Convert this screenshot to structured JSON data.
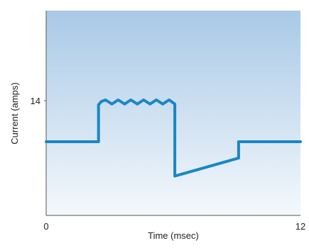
{
  "chart_data": {
    "type": "line",
    "xlabel": "Time (msec)",
    "ylabel": "Current (amps)",
    "xlim": [
      0,
      12
    ],
    "ylim": [
      0,
      25
    ],
    "x_tick_labels": [
      {
        "value": 0,
        "label": "0"
      },
      {
        "value": 12,
        "label": "12"
      }
    ],
    "y_tick_labels": [
      {
        "value": 14,
        "label": "14"
      }
    ],
    "grid": false,
    "series": [
      {
        "color": "#1a86c7",
        "x": [
          0,
          2.47,
          2.47,
          2.6,
          2.8,
          3.1,
          3.4,
          3.7,
          4.0,
          4.3,
          4.6,
          4.9,
          5.2,
          5.5,
          5.8,
          6.07,
          6.07,
          9.08,
          9.08,
          12
        ],
        "y": [
          9.0,
          9.0,
          13.5,
          13.9,
          14.1,
          13.6,
          14.1,
          13.6,
          14.1,
          13.6,
          14.1,
          13.6,
          14.1,
          13.6,
          14.1,
          13.6,
          4.8,
          7.0,
          9.0,
          9.0
        ]
      }
    ],
    "colors": {
      "plot_bg_top": "#a9c9e7",
      "plot_bg_bottom": "#f4f8fc",
      "axis": "#555555"
    }
  }
}
